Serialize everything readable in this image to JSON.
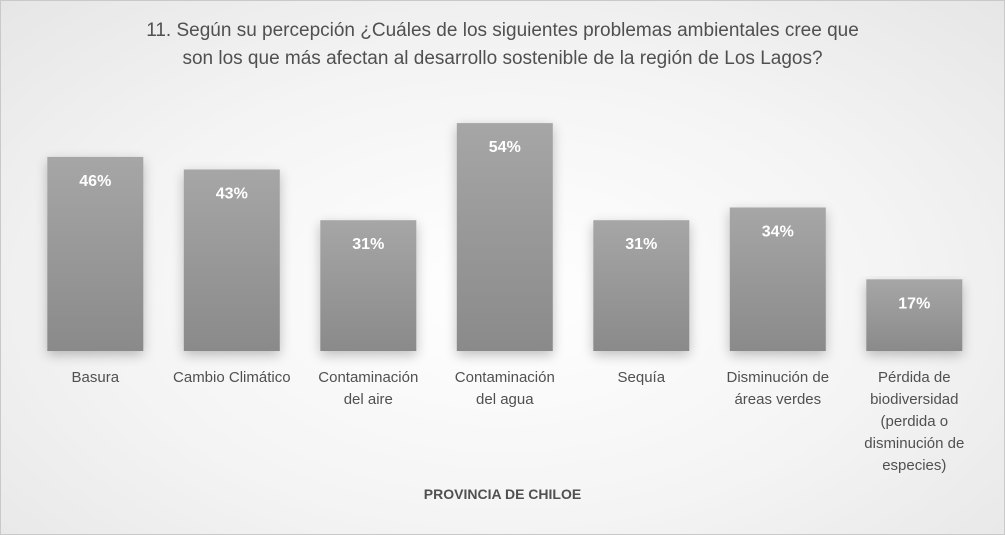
{
  "chart_data": {
    "type": "bar",
    "title_lines": [
      "11. Según su percepción ¿Cuáles de los siguientes problemas ambientales cree que",
      "son los que más afectan al desarrollo sostenible de la región de Los Lagos?"
    ],
    "categories": [
      [
        "Basura"
      ],
      [
        "Cambio Climático"
      ],
      [
        "Contaminación",
        "del aire"
      ],
      [
        "Contaminación",
        "del agua"
      ],
      [
        "Sequía"
      ],
      [
        "Disminución de",
        "áreas verdes"
      ],
      [
        "Pérdida de",
        "biodiversidad",
        "(perdida o",
        "disminución de",
        "especies)"
      ]
    ],
    "values": [
      46,
      43,
      31,
      54,
      31,
      34,
      17
    ],
    "data_labels": [
      "46%",
      "43%",
      "31%",
      "54%",
      "31%",
      "34%",
      "17%"
    ],
    "xlabel": "PROVINCIA DE CHILOE",
    "ylabel": "",
    "ylim": [
      0,
      60
    ],
    "grid": false,
    "legend": "none",
    "colors": {
      "bar_top": "#a6a6a6",
      "bar_bottom": "#8a8a8a",
      "label": "#ffffff",
      "text": "#505050"
    }
  }
}
